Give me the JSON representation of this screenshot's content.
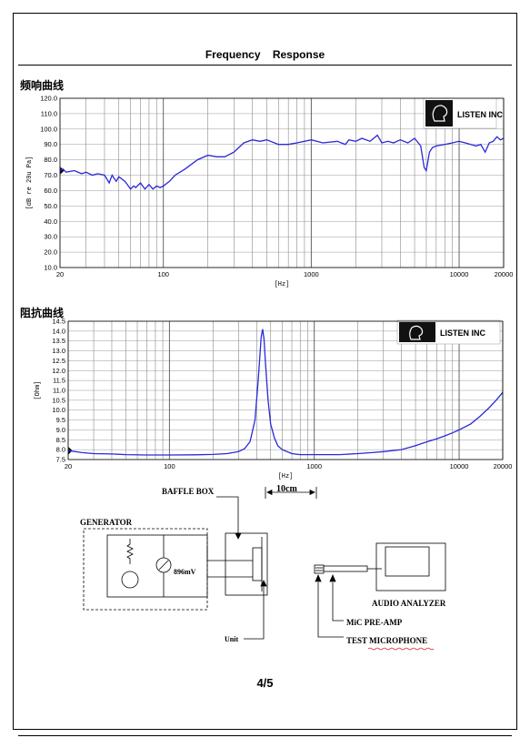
{
  "doc": {
    "title": "Frequency    Response",
    "page_number": "4/5"
  },
  "chart_data": [
    {
      "type": "line",
      "title": "频响曲线",
      "xlabel": "[Hz]",
      "ylabel": "[dB re 20u Pa]",
      "xscale": "log",
      "xlim": [
        20,
        20000
      ],
      "ylim": [
        10,
        120
      ],
      "x_tick_labels": [
        "20",
        "100",
        "1000",
        "10000",
        "20000"
      ],
      "y_tick_labels": [
        "10.0",
        "20.0",
        "30.0",
        "40.0",
        "50.0",
        "60.0",
        "70.0",
        "80.0",
        "90.0",
        "100.0",
        "110.0",
        "120.0"
      ],
      "grid": true,
      "logo": "LISTEN INC",
      "series": [
        {
          "color": "#2a2ad8",
          "x": [
            20,
            21,
            22,
            25,
            28,
            30,
            33,
            36,
            40,
            43,
            45,
            48,
            50,
            55,
            60,
            63,
            65,
            70,
            75,
            80,
            85,
            90,
            95,
            100,
            110,
            120,
            140,
            170,
            200,
            230,
            260,
            300,
            350,
            400,
            450,
            500,
            600,
            700,
            800,
            1000,
            1200,
            1500,
            1700,
            1800,
            2000,
            2200,
            2500,
            2800,
            3000,
            3300,
            3600,
            4000,
            4500,
            5000,
            5500,
            5800,
            6000,
            6300,
            6600,
            7000,
            8000,
            9000,
            10000,
            11000,
            12000,
            13000,
            14000,
            15000,
            16000,
            17000,
            18000,
            19000,
            20000
          ],
          "y": [
            73,
            74,
            72,
            73,
            71,
            72,
            70,
            71,
            70,
            65,
            70,
            66,
            69,
            66,
            61,
            63,
            62,
            65,
            61,
            64,
            61,
            63,
            62,
            63,
            66,
            70,
            74,
            80,
            83,
            82,
            82,
            85,
            91,
            93,
            92,
            93,
            90,
            90,
            91,
            93,
            91,
            92,
            90,
            93,
            92,
            94,
            92,
            96,
            91,
            92,
            91,
            93,
            91,
            94,
            89,
            75,
            73,
            85,
            88,
            89,
            90,
            91,
            92,
            91,
            90,
            89,
            90,
            85,
            91,
            92,
            95,
            93,
            94
          ]
        }
      ]
    },
    {
      "type": "line",
      "title": "阻抗曲线",
      "xlabel": "[Hz]",
      "ylabel": "[Ohm]",
      "xscale": "log",
      "xlim": [
        20,
        20000
      ],
      "ylim": [
        7.5,
        14.5
      ],
      "x_tick_labels": [
        "20",
        "100",
        "1000",
        "10000",
        "20000"
      ],
      "y_tick_labels": [
        "7.5",
        "8.0",
        "8.5",
        "9.0",
        "9.5",
        "10.0",
        "10.5",
        "11.0",
        "11.5",
        "12.0",
        "12.5",
        "13.0",
        "13.5",
        "14.0",
        "14.5"
      ],
      "grid": true,
      "logo": "LISTEN INC",
      "series": [
        {
          "color": "#2a2ad8",
          "x": [
            20,
            25,
            30,
            40,
            50,
            70,
            100,
            150,
            200,
            250,
            300,
            330,
            360,
            390,
            410,
            430,
            440,
            450,
            460,
            480,
            500,
            530,
            560,
            600,
            700,
            800,
            1000,
            1500,
            2000,
            2500,
            3000,
            4000,
            5000,
            6000,
            7000,
            8000,
            9000,
            10000,
            12000,
            14000,
            16000,
            18000,
            20000
          ],
          "y": [
            7.95,
            7.85,
            7.8,
            7.78,
            7.75,
            7.73,
            7.73,
            7.74,
            7.76,
            7.8,
            7.9,
            8.05,
            8.4,
            9.5,
            11.5,
            13.7,
            14.1,
            13.6,
            12.4,
            10.5,
            9.3,
            8.6,
            8.2,
            8.0,
            7.8,
            7.75,
            7.75,
            7.75,
            7.8,
            7.85,
            7.9,
            8.0,
            8.2,
            8.4,
            8.55,
            8.7,
            8.85,
            9.0,
            9.3,
            9.7,
            10.1,
            10.5,
            10.9
          ]
        }
      ]
    }
  ],
  "diagram": {
    "baffle_box": "BAFFLE BOX",
    "distance": "10cm",
    "generator": "GENERATOR",
    "voltage": "896mV",
    "unit": "Unit",
    "audio_analyzer": "AUDIO ANALYZER",
    "pre_amp": "MiC PRE-AMP",
    "test_mic": "TEST MICROPHONE"
  }
}
